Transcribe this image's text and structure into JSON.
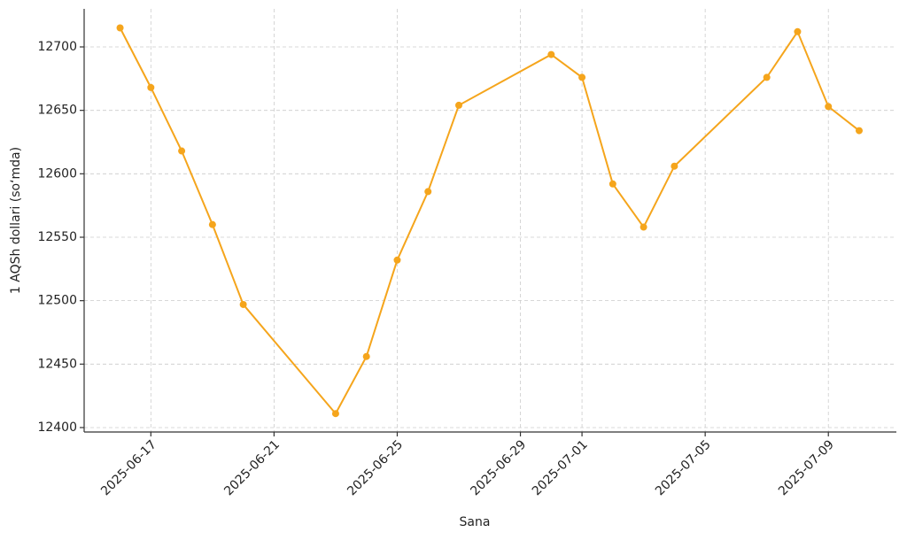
{
  "chart_data": {
    "type": "line",
    "x_label": "Sana",
    "y_label": "1 AQSh dollari (so‘mda)",
    "x": [
      "2025-06-16",
      "2025-06-17",
      "2025-06-18",
      "2025-06-19",
      "2025-06-20",
      "2025-06-23",
      "2025-06-24",
      "2025-06-25",
      "2025-06-26",
      "2025-06-27",
      "2025-06-30",
      "2025-07-01",
      "2025-07-02",
      "2025-07-03",
      "2025-07-04",
      "2025-07-07",
      "2025-07-08",
      "2025-07-09",
      "2025-07-10"
    ],
    "series": [
      {
        "color": "#f5a51c",
        "values": [
          12715,
          12668,
          12618,
          12560,
          12497,
          12411,
          12456,
          12532,
          12586,
          12654,
          12694,
          12676,
          12592,
          12558,
          12606,
          12676,
          12712,
          12653,
          12634
        ]
      }
    ],
    "xlim": [
      "2025-06-14T20:00",
      "2025-07-11T05:00"
    ],
    "xticks": [
      "2025-06-17",
      "2025-06-21",
      "2025-06-25",
      "2025-06-29",
      "2025-07-01",
      "2025-07-05",
      "2025-07-09"
    ],
    "ylim": [
      12396.5,
      12730
    ],
    "yticks": [
      12400,
      12450,
      12500,
      12550,
      12600,
      12650,
      12700
    ],
    "grid": true
  }
}
